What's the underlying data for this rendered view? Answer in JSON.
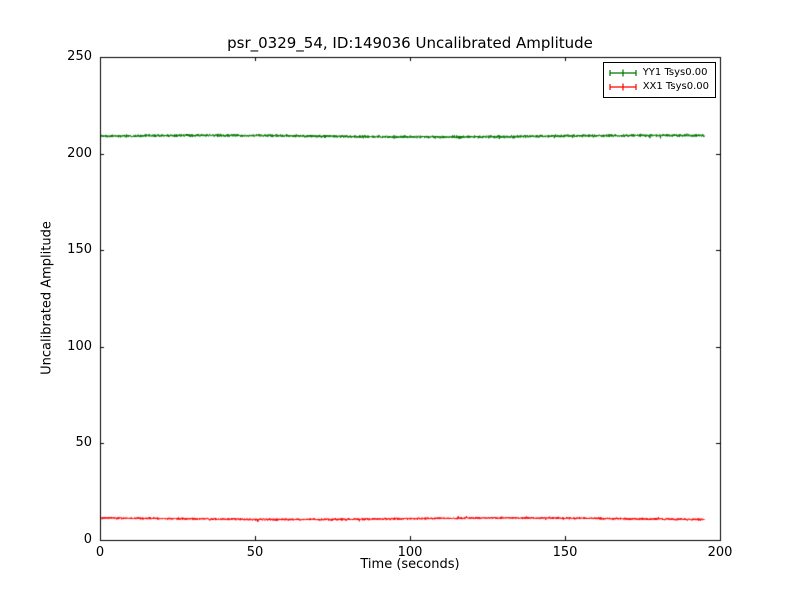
{
  "chart_data": {
    "type": "line",
    "title": "psr_0329_54, ID:149036 Uncalibrated Amplitude",
    "xlabel": "Time (seconds)",
    "ylabel": "Uncalibrated Amplitude",
    "xlim": [
      0,
      200
    ],
    "ylim": [
      0,
      250
    ],
    "xticks": [
      0,
      50,
      100,
      150,
      200
    ],
    "yticks": [
      0,
      50,
      100,
      150,
      200,
      250
    ],
    "grid": false,
    "legend_position": "upper right",
    "series": [
      {
        "name": "YY1 Tsys0.00",
        "color": "#007700",
        "style": "noisy-errorbar-line",
        "x_range": [
          0.5,
          195
        ],
        "mean": 209,
        "noise_amplitude": 2
      },
      {
        "name": "XX1 Tsys0.00",
        "color": "#ff0000",
        "style": "noisy-errorbar-line",
        "x_range": [
          0.5,
          195
        ],
        "mean": 11,
        "noise_amplitude": 1.6
      }
    ]
  },
  "legend": {
    "entries": [
      {
        "label": "YY1 Tsys0.00",
        "color": "#007700"
      },
      {
        "label": "XX1 Tsys0.00",
        "color": "#ff0000"
      }
    ]
  }
}
